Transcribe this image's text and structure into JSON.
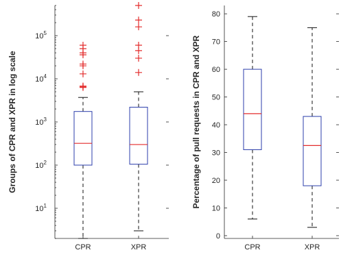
{
  "chart_data": [
    {
      "type": "box",
      "scale": "log",
      "ylabel": "Groups of CPR and XPR in log scale",
      "categories": [
        "CPR",
        "XPR"
      ],
      "ylim": [
        2,
        500000
      ],
      "yticks": [
        {
          "value": 10,
          "base": "10",
          "exp": "1"
        },
        {
          "value": 100,
          "base": "10",
          "exp": "2"
        },
        {
          "value": 1000,
          "base": "10",
          "exp": "3"
        },
        {
          "value": 10000,
          "base": "10",
          "exp": "4"
        },
        {
          "value": 100000,
          "base": "10",
          "exp": "5"
        }
      ],
      "boxes": [
        {
          "name": "CPR",
          "whisker_low": 2,
          "q1": 100,
          "median": 320,
          "q3": 1750,
          "whisker_high": 3700,
          "outliers": [
            6300,
            6500,
            6800,
            13000,
            20000,
            22000,
            36000,
            40000,
            50000,
            60000
          ]
        },
        {
          "name": "XPR",
          "whisker_low": 3,
          "q1": 105,
          "median": 300,
          "q3": 2200,
          "whisker_high": 5000,
          "outliers": [
            14000,
            30000,
            45000,
            60000,
            160000,
            230000,
            500000
          ]
        }
      ]
    },
    {
      "type": "box",
      "scale": "linear",
      "ylabel": "Percentage of pull requests in CPR and XPR",
      "categories": [
        "CPR",
        "XPR"
      ],
      "ylim": [
        -1,
        83
      ],
      "yticks": [
        0,
        10,
        20,
        30,
        40,
        50,
        60,
        70,
        80
      ],
      "boxes": [
        {
          "name": "CPR",
          "whisker_low": 6,
          "q1": 31,
          "median": 44,
          "q3": 60,
          "whisker_high": 79,
          "outliers": []
        },
        {
          "name": "XPR",
          "whisker_low": 3,
          "q1": 18,
          "median": 32.5,
          "q3": 43,
          "whisker_high": 75,
          "outliers": []
        }
      ]
    }
  ]
}
